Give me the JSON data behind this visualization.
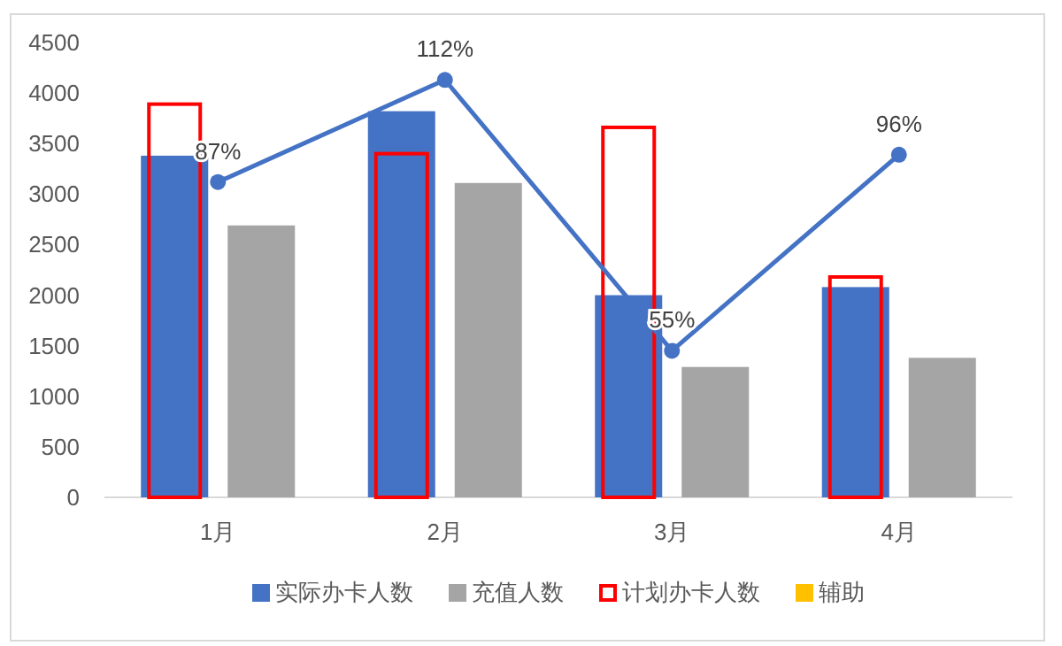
{
  "chart_data": {
    "type": "bar",
    "categories": [
      "1月",
      "2月",
      "3月",
      "4月"
    ],
    "ylim": [
      0,
      4500
    ],
    "yticks": [
      0,
      500,
      1000,
      1500,
      2000,
      2500,
      3000,
      3500,
      4000,
      4500
    ],
    "grid": false,
    "legend": "bottom",
    "marker": "circle",
    "series": [
      {
        "name": "实际办卡人数",
        "color": "#4472c4",
        "values": [
          3380,
          3820,
          2000,
          2080
        ]
      },
      {
        "name": "充值人数",
        "color": "#a5a5a5",
        "values": [
          2690,
          3110,
          1290,
          1380
        ]
      },
      {
        "name": "计划办卡人数",
        "color": "#ff0000",
        "values": [
          3890,
          3400,
          3660,
          2180
        ]
      },
      {
        "name": "辅助",
        "color": "#ffc000",
        "values": [
          null,
          null,
          null,
          null
        ]
      },
      {
        "type": "line",
        "color": "#4472c4",
        "values": [
          3120,
          4130,
          1450,
          3390
        ]
      }
    ],
    "annotations": [
      {
        "text": "87%",
        "x": "1月",
        "y": 3120
      },
      {
        "text": "112%",
        "x": "2月",
        "y": 4130
      },
      {
        "text": "55%",
        "x": "3月",
        "y": 1450
      },
      {
        "text": "96%",
        "x": "4月",
        "y": 3390
      }
    ]
  }
}
